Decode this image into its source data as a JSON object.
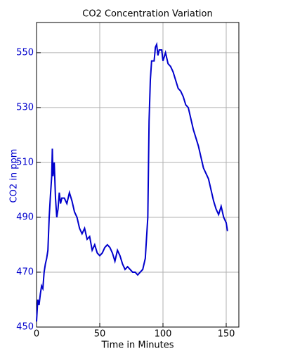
{
  "chart_data": {
    "type": "line",
    "title": "CO2 Concentration Variation",
    "x_label": "Time in Minutes",
    "y_label": "CO2 in ppm",
    "x": [
      0,
      1,
      2,
      3,
      4,
      5,
      6,
      7,
      8,
      9,
      10,
      11,
      12,
      12.5,
      13,
      14,
      15,
      16,
      17,
      18,
      19,
      20,
      22,
      24,
      26,
      28,
      30,
      32,
      34,
      36,
      38,
      40,
      42,
      44,
      46,
      48,
      50,
      52,
      54,
      56,
      58,
      60,
      62,
      64,
      66,
      68,
      70,
      72,
      74,
      76,
      78,
      80,
      82,
      84,
      86,
      88,
      89,
      90,
      91,
      93,
      94,
      95,
      96,
      97,
      99,
      100,
      102,
      104,
      106,
      108,
      110,
      112,
      114,
      116,
      118,
      120,
      122,
      124,
      126,
      128,
      130,
      132,
      134,
      136,
      138,
      140,
      142,
      144,
      146,
      148,
      150,
      151
    ],
    "series": [
      {
        "color": "#0000cc",
        "values": [
          452,
          460,
          458,
          462,
          465,
          464,
          470,
          473,
          475,
          478,
          490,
          498,
          505,
          515,
          505,
          510,
          497,
          490,
          493,
          499,
          495,
          497,
          497,
          495,
          499,
          496,
          492,
          490,
          486,
          484,
          486,
          482,
          483,
          478,
          480,
          477,
          476,
          477,
          479,
          480,
          479,
          477,
          474,
          478,
          476,
          473,
          471,
          472,
          471,
          470,
          470,
          469,
          470,
          471,
          475,
          490,
          525,
          540,
          547,
          547,
          552,
          553,
          549,
          551,
          551,
          547,
          550,
          546,
          545,
          543,
          540,
          537,
          536,
          534,
          531,
          530,
          526,
          522,
          519,
          516,
          512,
          508,
          506,
          504,
          500,
          496,
          493,
          491,
          494,
          490,
          488,
          485
        ]
      }
    ],
    "xlim": [
      0,
      160
    ],
    "ylim": [
      450,
      561
    ],
    "xticks": [
      0,
      50,
      100,
      150
    ],
    "yticks": [
      450,
      470,
      490,
      510,
      530,
      550
    ],
    "grid": true
  }
}
